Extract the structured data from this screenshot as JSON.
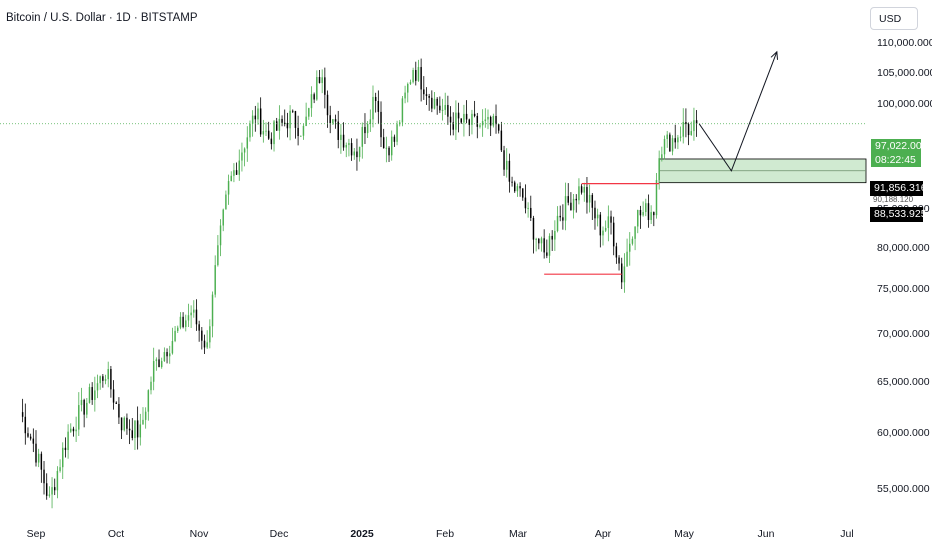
{
  "header": {
    "title": "Bitcoin / U.S. Dollar · 1D · BITSTAMP"
  },
  "currency_button": {
    "label": "USD"
  },
  "price_tags": {
    "current_price": "97,022.000",
    "countdown": "08:22:45",
    "zone_top": "91,856.316",
    "zone_mid": "90,188.120",
    "zone_bottom": "88,533.925"
  },
  "colors": {
    "up": "#4caf50",
    "down": "#000000",
    "zone_fill": "#c8e6c9",
    "support_line": "#f23645",
    "current_line": "#4caf50"
  },
  "chart_data": {
    "type": "candlestick",
    "symbol": "BTCUSD",
    "interval": "1D",
    "exchange": "BITSTAMP",
    "y_axis": {
      "ylim": [
        52500,
        112000
      ],
      "ticks": [
        "110,000.000",
        "105,000.000",
        "100,000.000",
        "85,000.000",
        "80,000.000",
        "75,000.000",
        "70,000.000",
        "65,000.000",
        "60,000.000",
        "55,000.000"
      ],
      "tick_values": [
        110000,
        105000,
        100000,
        85000,
        80000,
        75000,
        70000,
        65000,
        60000,
        55000
      ]
    },
    "x_axis": {
      "ticks": [
        "Sep",
        "Oct",
        "Nov",
        "Dec",
        "2025",
        "Feb",
        "Mar",
        "Apr",
        "May",
        "Jun",
        "Jul"
      ]
    },
    "price_path": [
      [
        "2024-08-26",
        62000
      ],
      [
        "2024-08-31",
        59000
      ],
      [
        "2024-09-06",
        54000
      ],
      [
        "2024-09-13",
        60000
      ],
      [
        "2024-09-20",
        63000
      ],
      [
        "2024-09-27",
        66000
      ],
      [
        "2024-10-03",
        61000
      ],
      [
        "2024-10-10",
        60000
      ],
      [
        "2024-10-15",
        66500
      ],
      [
        "2024-10-21",
        69000
      ],
      [
        "2024-10-29",
        72500
      ],
      [
        "2024-11-04",
        68500
      ],
      [
        "2024-11-06",
        75000
      ],
      [
        "2024-11-12",
        88000
      ],
      [
        "2024-11-22",
        98500
      ],
      [
        "2024-11-27",
        95000
      ],
      [
        "2024-12-05",
        98000
      ],
      [
        "2024-12-10",
        96000
      ],
      [
        "2024-12-17",
        106000
      ],
      [
        "2024-12-20",
        97000
      ],
      [
        "2024-12-30",
        93000
      ],
      [
        "2025-01-06",
        102000
      ],
      [
        "2025-01-09",
        93500
      ],
      [
        "2025-01-13",
        94500
      ],
      [
        "2025-01-20",
        106000
      ],
      [
        "2025-01-27",
        101000
      ],
      [
        "2025-02-03",
        97500
      ],
      [
        "2025-02-10",
        97000
      ],
      [
        "2025-02-20",
        96500
      ],
      [
        "2025-02-25",
        88500
      ],
      [
        "2025-03-02",
        86500
      ],
      [
        "2025-03-04",
        84000
      ],
      [
        "2025-03-10",
        79000
      ],
      [
        "2025-03-15",
        84000
      ],
      [
        "2025-03-24",
        88000
      ],
      [
        "2025-03-31",
        82500
      ],
      [
        "2025-04-04",
        83000
      ],
      [
        "2025-04-08",
        76500
      ],
      [
        "2025-04-13",
        84000
      ],
      [
        "2025-04-20",
        85000
      ],
      [
        "2025-04-22",
        93500
      ],
      [
        "2025-04-28",
        95000
      ],
      [
        "2025-05-02",
        97000
      ],
      [
        "2025-05-04",
        95500
      ],
      [
        "2025-05-06",
        97022
      ]
    ],
    "current_price": 97022,
    "horizontal_lines": [
      {
        "label": "support-low",
        "price": 76800,
        "from": "2025-03-10",
        "to": "2025-04-08"
      },
      {
        "label": "resistance",
        "price": 88400,
        "from": "2025-03-24",
        "to": "2025-04-22"
      }
    ],
    "demand_zone": {
      "top": 91856.316,
      "bottom": 88533.925,
      "mid": 90188.12,
      "from": "2025-04-22",
      "to": "2025-07-17"
    },
    "projection_path": [
      [
        "2025-05-07",
        97000
      ],
      [
        "2025-05-19",
        90188
      ],
      [
        "2025-06-05",
        108500
      ]
    ]
  }
}
